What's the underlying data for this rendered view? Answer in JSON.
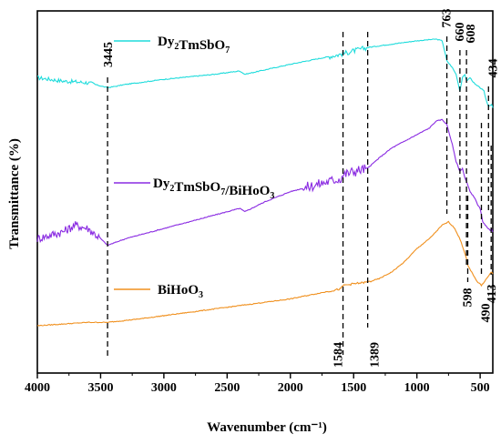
{
  "chart_data": {
    "type": "line",
    "xlabel": "Wavenumber (cm⁻¹)",
    "ylabel": "Transmittance (%)",
    "xlim": [
      4000,
      400
    ],
    "x_ticks": [
      4000,
      3500,
      3000,
      2500,
      2000,
      1500,
      1000,
      500
    ],
    "x_reversed": true,
    "y_ticks_shown": false,
    "grid": false,
    "legend_placement": "inline",
    "series": [
      {
        "name": "Dy₂TmSbO₇",
        "color": "#1fdcdc",
        "points": [
          [
            4000,
            80
          ],
          [
            3800,
            79
          ],
          [
            3600,
            78.5
          ],
          [
            3445,
            77
          ],
          [
            3300,
            78
          ],
          [
            3000,
            79.5
          ],
          [
            2600,
            81
          ],
          [
            2400,
            82
          ],
          [
            2360,
            81
          ],
          [
            2000,
            84
          ],
          [
            1800,
            85.5
          ],
          [
            1600,
            87
          ],
          [
            1500,
            88
          ],
          [
            1389,
            89
          ],
          [
            1200,
            90
          ],
          [
            1000,
            91
          ],
          [
            850,
            91.5
          ],
          [
            800,
            91
          ],
          [
            763,
            85
          ],
          [
            720,
            83
          ],
          [
            690,
            81
          ],
          [
            660,
            76
          ],
          [
            640,
            80
          ],
          [
            620,
            81
          ],
          [
            608,
            79
          ],
          [
            580,
            80
          ],
          [
            540,
            78
          ],
          [
            500,
            77
          ],
          [
            470,
            76
          ],
          [
            450,
            73
          ],
          [
            434,
            71.5
          ],
          [
            410,
            72
          ],
          [
            400,
            71
          ]
        ]
      },
      {
        "name": "Dy₂TmSbO₇/BiHoO₃",
        "color": "#8a2be2",
        "points": [
          [
            4000,
            32
          ],
          [
            3900,
            33
          ],
          [
            3800,
            34
          ],
          [
            3700,
            36
          ],
          [
            3600,
            35
          ],
          [
            3500,
            32
          ],
          [
            3445,
            30
          ],
          [
            3300,
            32
          ],
          [
            3100,
            34
          ],
          [
            2900,
            36
          ],
          [
            2700,
            38
          ],
          [
            2500,
            40
          ],
          [
            2400,
            41
          ],
          [
            2360,
            40
          ],
          [
            2200,
            43
          ],
          [
            2000,
            46
          ],
          [
            1800,
            48
          ],
          [
            1600,
            50
          ],
          [
            1584,
            51
          ],
          [
            1500,
            52
          ],
          [
            1389,
            53
          ],
          [
            1300,
            56
          ],
          [
            1200,
            59
          ],
          [
            1100,
            61
          ],
          [
            1000,
            63
          ],
          [
            900,
            65
          ],
          [
            850,
            67
          ],
          [
            800,
            67.5
          ],
          [
            763,
            66
          ],
          [
            720,
            60
          ],
          [
            690,
            55
          ],
          [
            660,
            52
          ],
          [
            640,
            53
          ],
          [
            620,
            50
          ],
          [
            608,
            49
          ],
          [
            580,
            46
          ],
          [
            540,
            44
          ],
          [
            520,
            42
          ],
          [
            500,
            41
          ],
          [
            480,
            37
          ],
          [
            460,
            36
          ],
          [
            440,
            35
          ],
          [
            420,
            34.5
          ],
          [
            410,
            35
          ],
          [
            400,
            34
          ]
        ]
      },
      {
        "name": "BiHoO₃",
        "color": "#f0901e",
        "points": [
          [
            4000,
            6
          ],
          [
            3800,
            6.5
          ],
          [
            3600,
            7
          ],
          [
            3445,
            7
          ],
          [
            3200,
            8
          ],
          [
            3000,
            9
          ],
          [
            2800,
            10
          ],
          [
            2600,
            11
          ],
          [
            2400,
            12
          ],
          [
            2200,
            13
          ],
          [
            2000,
            14
          ],
          [
            1800,
            15.5
          ],
          [
            1600,
            17
          ],
          [
            1584,
            18
          ],
          [
            1500,
            18.5
          ],
          [
            1389,
            19
          ],
          [
            1300,
            20
          ],
          [
            1200,
            22
          ],
          [
            1100,
            25
          ],
          [
            1000,
            29
          ],
          [
            900,
            32
          ],
          [
            800,
            36
          ],
          [
            750,
            37
          ],
          [
            700,
            35
          ],
          [
            650,
            31
          ],
          [
            600,
            25
          ],
          [
            598,
            24
          ],
          [
            560,
            21.5
          ],
          [
            520,
            19
          ],
          [
            500,
            18.5
          ],
          [
            490,
            18
          ],
          [
            470,
            19
          ],
          [
            450,
            20
          ],
          [
            430,
            21
          ],
          [
            413,
            22
          ],
          [
            400,
            21.5
          ]
        ]
      }
    ],
    "peak_labels": [
      {
        "text": "3445",
        "x": 3445,
        "label_pos": "top"
      },
      {
        "text": "1584",
        "x": 1584,
        "label_pos": "bottom"
      },
      {
        "text": "1389",
        "x": 1389,
        "label_pos": "bottom"
      },
      {
        "text": "763",
        "x": 763,
        "label_pos": "top"
      },
      {
        "text": "660",
        "x": 660,
        "label_pos": "top"
      },
      {
        "text": "608",
        "x": 608,
        "label_pos": "top"
      },
      {
        "text": "434",
        "x": 434,
        "label_pos": "top"
      },
      {
        "text": "598",
        "x": 598,
        "label_pos": "bottom"
      },
      {
        "text": "490",
        "x": 490,
        "label_pos": "bottom"
      },
      {
        "text": "413",
        "x": 413,
        "label_pos": "bottom"
      }
    ],
    "legend": [
      {
        "series": "Dy₂TmSbO₇",
        "base": "Dy",
        "parts": [
          [
            "Dy",
            ""
          ],
          [
            "2",
            "sub"
          ],
          [
            "TmSbO",
            ""
          ],
          [
            "7",
            "sub"
          ]
        ]
      },
      {
        "series": "Dy₂TmSbO₇/BiHoO₃",
        "parts": [
          [
            "Dy",
            ""
          ],
          [
            "2",
            "sub"
          ],
          [
            "TmSbO",
            ""
          ],
          [
            "7",
            "sub"
          ],
          [
            "/BiHoO",
            ""
          ],
          [
            "3",
            "sub"
          ]
        ]
      },
      {
        "series": "BiHoO₃",
        "parts": [
          [
            "BiHoO",
            ""
          ],
          [
            "3",
            "sub"
          ]
        ]
      }
    ]
  }
}
